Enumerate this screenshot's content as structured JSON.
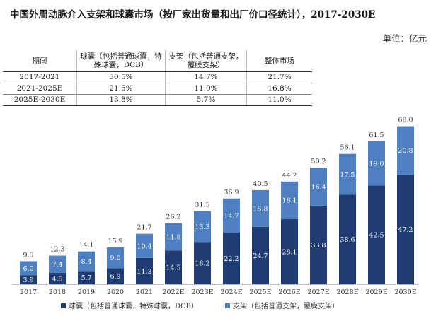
{
  "title": "中国外周动脉介入支架和球囊市场（按厂家出货量和出厂价口径统计），2017-2030E",
  "unit": "单位：亿元",
  "cagr_table": {
    "headers": [
      "期间",
      "球囊（包括普通球囊，特殊球囊，DCB）",
      "支架（包括普通支架，覆膜支架）",
      "整体市场"
    ],
    "rows": [
      [
        "2017-2021",
        "30.5%",
        "14.7%",
        "21.7%"
      ],
      [
        "2021-2025E",
        "21.5%",
        "11.0%",
        "16.8%"
      ],
      [
        "2025E-2030E",
        "13.8%",
        "5.7%",
        "11.0%"
      ]
    ]
  },
  "chart_data": {
    "type": "bar",
    "stacked": true,
    "categories": [
      "2017",
      "2018",
      "2019",
      "2020",
      "2021",
      "2022E",
      "2023E",
      "2024E",
      "2025E",
      "2026E",
      "2027E",
      "2028E",
      "2029E",
      "2030E"
    ],
    "series": [
      {
        "name": "球囊（包括普通球囊，特殊球囊，DCB）",
        "color": "#1f3d73",
        "values": [
          3.9,
          4.9,
          5.7,
          6.9,
          11.3,
          14.5,
          18.2,
          22.2,
          24.7,
          28.1,
          33.8,
          38.6,
          42.5,
          47.2
        ]
      },
      {
        "name": "支架（包括普通支架，覆膜支架）",
        "color": "#4e7fc0",
        "values": [
          6.0,
          7.4,
          8.4,
          9.0,
          10.4,
          11.8,
          13.3,
          14.7,
          15.8,
          16.1,
          16.4,
          17.5,
          19.0,
          20.8
        ]
      }
    ],
    "totals": [
      9.9,
      12.3,
      14.1,
      15.9,
      21.7,
      26.2,
      31.5,
      36.9,
      40.5,
      44.2,
      50.2,
      56.1,
      61.5,
      68.0
    ],
    "totals_labels": [
      "9.9",
      "12.3",
      "14.1",
      "15.9",
      "21.7",
      "26.2",
      "31.5",
      "36.9",
      "40.5",
      "44.2",
      "50.2",
      "56.1",
      "61.5",
      "68.0"
    ],
    "ylim": [
      0,
      70
    ],
    "grid": false,
    "legend": "bottom"
  }
}
